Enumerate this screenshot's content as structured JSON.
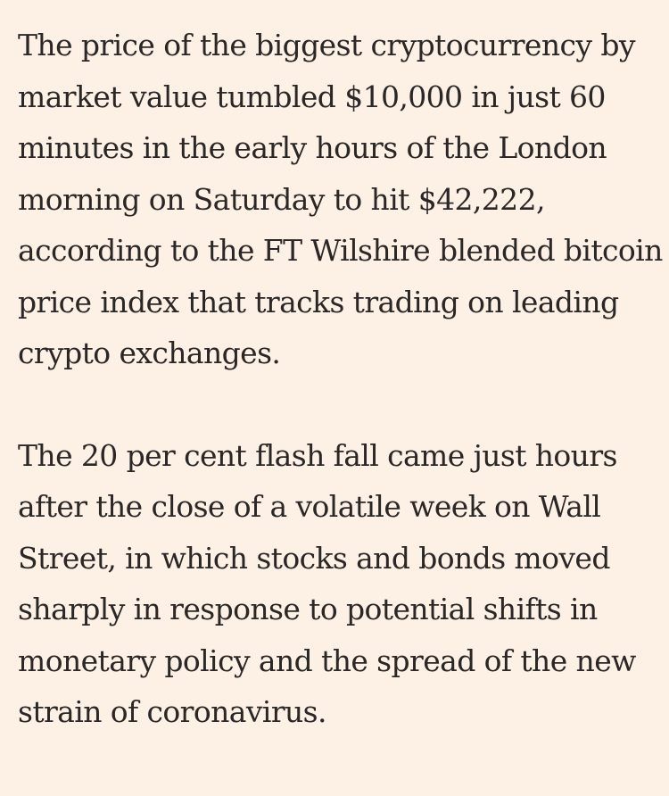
{
  "article": {
    "paragraphs": [
      {
        "lines": [
          "The price of the biggest cryptocurrency by",
          "market value tumbled $10,000 in just 60",
          "minutes in the early hours of the London",
          "morning on Saturday to hit $42,222,",
          "according to the FT Wilshire blended bitcoin",
          "price index that tracks trading on leading",
          "crypto exchanges."
        ]
      },
      {
        "lines": [
          "The 20 per cent flash fall came just hours",
          "after the close of a volatile week on Wall",
          "Street, in which stocks and bonds moved",
          "sharply in response to potential shifts in",
          "monetary policy and the spread of the new",
          "strain of coronavirus."
        ]
      }
    ]
  }
}
